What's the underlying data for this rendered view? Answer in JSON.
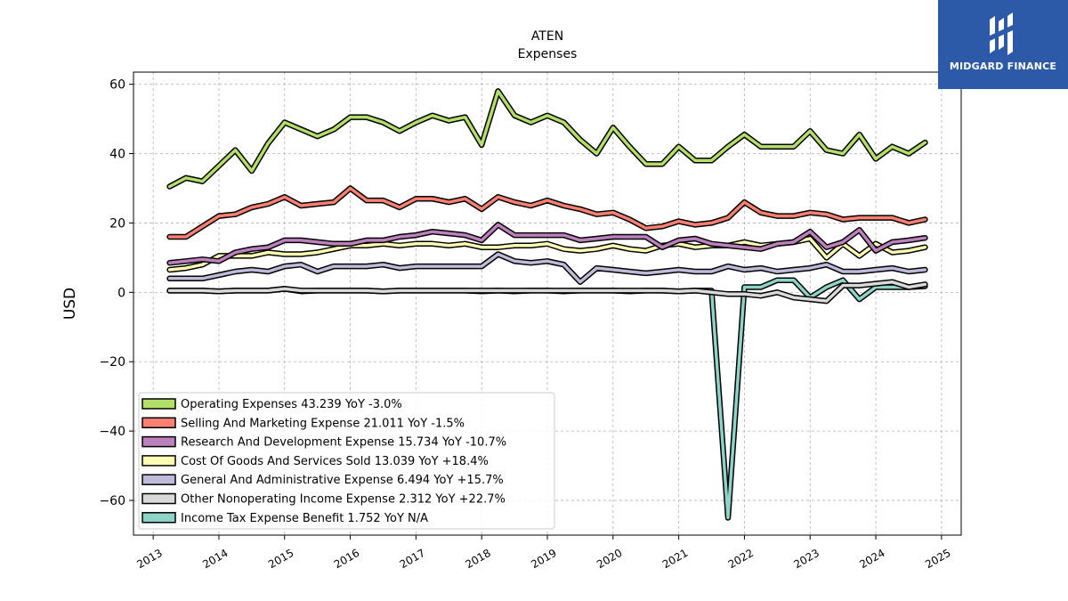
{
  "chart_data": {
    "type": "line",
    "title": "ATEN",
    "subtitle": "Expenses",
    "xlabel": "",
    "ylabel": "USD",
    "ylim": [
      -70,
      63.5
    ],
    "xlim": [
      2012.7,
      2025.3
    ],
    "y_ticks": [
      60,
      40,
      20,
      0,
      -20,
      -40,
      -60
    ],
    "x_ticks": [
      2013,
      2014,
      2015,
      2016,
      2017,
      2018,
      2019,
      2020,
      2021,
      2022,
      2023,
      2024,
      2025
    ],
    "y_tick_labels": [
      "60",
      "40",
      "20",
      "0",
      "−20",
      "−40",
      "−60"
    ],
    "x_tick_labels": [
      "2013",
      "2014",
      "2015",
      "2016",
      "2017",
      "2018",
      "2019",
      "2020",
      "2021",
      "2022",
      "2023",
      "2024",
      "2025"
    ],
    "grid": true,
    "legend_position": "lower-left",
    "x": [
      2013.25,
      2013.5,
      2013.75,
      2014.0,
      2014.25,
      2014.5,
      2014.75,
      2015.0,
      2015.25,
      2015.5,
      2015.75,
      2016.0,
      2016.25,
      2016.5,
      2016.75,
      2017.0,
      2017.25,
      2017.5,
      2017.75,
      2018.0,
      2018.25,
      2018.5,
      2018.75,
      2019.0,
      2019.25,
      2019.5,
      2019.75,
      2020.0,
      2020.25,
      2020.5,
      2020.75,
      2021.0,
      2021.25,
      2021.5,
      2021.75,
      2022.0,
      2022.25,
      2022.5,
      2022.75,
      2023.0,
      2023.25,
      2023.5,
      2023.75,
      2024.0,
      2024.25,
      2024.5,
      2024.75
    ],
    "series": [
      {
        "name": "Operating Expenses",
        "legend": "Operating Expenses  43.239 YoY -3.0%",
        "color": "#b3de69",
        "values": [
          30.5,
          33,
          32,
          36.5,
          41,
          35,
          43,
          49,
          47,
          45,
          47,
          50.5,
          50.5,
          49,
          46.5,
          49,
          51,
          49.5,
          50.5,
          42.5,
          58,
          51,
          49,
          51,
          49,
          44,
          40,
          47.5,
          42,
          37,
          37,
          42,
          38,
          38,
          42,
          45.5,
          42,
          42,
          42,
          46.5,
          41,
          40,
          45.5,
          38.5,
          42,
          40,
          43.2
        ]
      },
      {
        "name": "Selling And Marketing Expense",
        "legend": "Selling And Marketing Expense  21.011 YoY -1.5%",
        "color": "#fb8072",
        "values": [
          16,
          16,
          19,
          22,
          22.5,
          24.5,
          25.5,
          27.5,
          25,
          25.5,
          26,
          30,
          26.5,
          26.5,
          24.5,
          27,
          27,
          26,
          27,
          24,
          27.5,
          26,
          25,
          26.5,
          25,
          24,
          22.5,
          23,
          21,
          18.5,
          19,
          20.5,
          19.5,
          20,
          21.5,
          26,
          23,
          22,
          22,
          23,
          22.5,
          21,
          21.5,
          21.5,
          21.5,
          20,
          21
        ]
      },
      {
        "name": "Research And Development Expense",
        "legend": "Research And Development Expense  15.734 YoY -10.7%",
        "color": "#bc80bd",
        "values": [
          8.5,
          9,
          9.5,
          9,
          11.5,
          12.5,
          13,
          15,
          15,
          14.5,
          14,
          14,
          15,
          15,
          16,
          16.5,
          17.5,
          17,
          16.5,
          15,
          19.5,
          16.5,
          16.5,
          16.5,
          16.5,
          15,
          15.5,
          16,
          16,
          16,
          13,
          15,
          15.5,
          14,
          13.5,
          13,
          12.5,
          14,
          14.5,
          17.5,
          13,
          14.5,
          18,
          12,
          14.5,
          15,
          15.7
        ]
      },
      {
        "name": "Cost Of Goods And Services Sold",
        "legend": "Cost Of Goods And Services Sold  13.039 YoY +18.4%",
        "color": "#ffffb3",
        "values": [
          6.5,
          7,
          8,
          10.5,
          10.5,
          10.5,
          11.5,
          11,
          11,
          11.5,
          12.5,
          13.5,
          13.5,
          14,
          13.5,
          14,
          14,
          13.5,
          14,
          13,
          13,
          13.5,
          13.5,
          14,
          12.5,
          12,
          12.5,
          13.5,
          12.5,
          12,
          13.5,
          14,
          13,
          13.5,
          13.5,
          14.5,
          13.5,
          14,
          14.5,
          15.5,
          10,
          14,
          10.5,
          14,
          11.5,
          12,
          13
        ]
      },
      {
        "name": "General And Administrative Expense",
        "legend": "General And Administrative Expense  6.494 YoY +15.7%",
        "color": "#bebada",
        "values": [
          4,
          4,
          4,
          5,
          6,
          6.5,
          6,
          7.5,
          8,
          6,
          7.5,
          7.5,
          7.5,
          8,
          7,
          7.5,
          7.5,
          7.5,
          7.5,
          7.5,
          11,
          9,
          8.5,
          9,
          8,
          3,
          7,
          6.5,
          6,
          5.5,
          6,
          6.5,
          6,
          6,
          7.5,
          6.5,
          7,
          6,
          6.5,
          7,
          8,
          6,
          6,
          6.5,
          7,
          6,
          6.5
        ]
      },
      {
        "name": "Other Nonoperating Income Expense",
        "legend": "Other Nonoperating Income Expense  2.312 YoY +22.7%",
        "color": "#d9d9d9",
        "values": [
          0.5,
          0.5,
          0.5,
          0.3,
          0.5,
          0.5,
          0.5,
          1,
          0.5,
          0.5,
          0.5,
          0.5,
          0.5,
          0.3,
          0.5,
          0.5,
          0.5,
          0.5,
          0.5,
          0.5,
          0.5,
          0.5,
          0.5,
          0.5,
          0.5,
          0.5,
          0.5,
          0.5,
          0.5,
          0.5,
          0.5,
          0.3,
          0.5,
          0,
          -0.5,
          -0.5,
          -1,
          0,
          -1.5,
          -2,
          -2.5,
          2,
          2,
          2.5,
          3,
          1.5,
          2.3
        ]
      },
      {
        "name": "Income Tax Expense Benefit",
        "legend": "Income Tax Expense Benefit  1.752 YoY N/A",
        "color": "#8dd3c7",
        "values": [
          0.5,
          0.5,
          0.5,
          0.3,
          0.5,
          0.5,
          0.5,
          1,
          0.3,
          0.5,
          0.5,
          0.5,
          0.5,
          0.3,
          0.5,
          0.5,
          0.5,
          0.5,
          0.5,
          0.3,
          0.5,
          0.3,
          0.5,
          0.5,
          0.3,
          0.5,
          0.5,
          0.5,
          0.3,
          0.5,
          0.5,
          0.3,
          0.5,
          0.5,
          -65,
          1.5,
          1.5,
          3.5,
          3.5,
          -1.5,
          1.5,
          3.5,
          -2,
          1.5,
          1.5,
          1.5,
          1.75
        ]
      }
    ]
  },
  "brand": {
    "name": "MIDGARD FINANCE",
    "bg_color": "#2c5aa8"
  }
}
